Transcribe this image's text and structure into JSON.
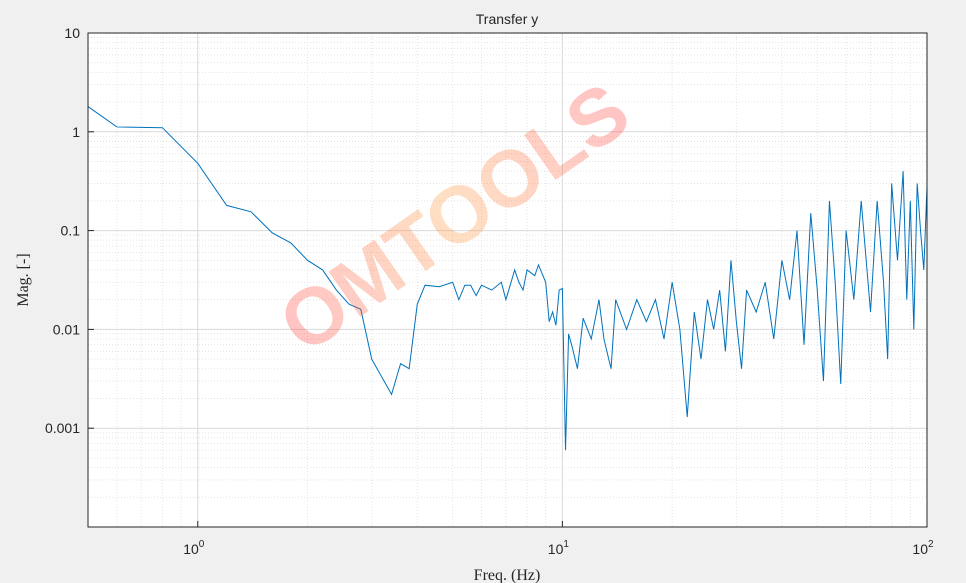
{
  "chart_data": {
    "type": "line",
    "title": "Transfer y",
    "xlabel": "Freq. (Hz)",
    "ylabel": "Mag. [-]",
    "watermark": "OMTOOLS",
    "xscale": "log",
    "yscale": "log",
    "grid": true,
    "minor_grid": true,
    "xlim": [
      0.5,
      100
    ],
    "ylim": [
      0.0001,
      10
    ],
    "xticks": [
      {
        "value": 1,
        "label": "10",
        "exp": "0"
      },
      {
        "value": 10,
        "label": "10",
        "exp": "1"
      },
      {
        "value": 100,
        "label": "10",
        "exp": "2"
      }
    ],
    "xminorticks": [
      0.6,
      0.7,
      0.8,
      0.9,
      2,
      3,
      4,
      5,
      6,
      7,
      8,
      9,
      20,
      30,
      40,
      50,
      60,
      70,
      80,
      90
    ],
    "yticks": [
      0.001,
      0.01,
      0.1,
      1,
      10
    ],
    "yminorticks": [
      0.0002,
      0.0003,
      0.0004,
      0.0005,
      0.0006,
      0.0007,
      0.0008,
      0.0009,
      0.002,
      0.003,
      0.004,
      0.005,
      0.006,
      0.007,
      0.008,
      0.009,
      0.02,
      0.03,
      0.04,
      0.05,
      0.06,
      0.07,
      0.08,
      0.09,
      0.2,
      0.3,
      0.4,
      0.5,
      0.6,
      0.7,
      0.8,
      0.9,
      2,
      3,
      4,
      5,
      6,
      7,
      8,
      9
    ],
    "x": [
      0.5,
      0.6,
      0.8,
      1.0,
      1.2,
      1.4,
      1.6,
      1.8,
      2.0,
      2.2,
      2.4,
      2.6,
      2.8,
      3.0,
      3.4,
      3.6,
      3.8,
      4.0,
      4.2,
      4.6,
      5.0,
      5.2,
      5.4,
      5.6,
      5.8,
      6.0,
      6.4,
      6.8,
      7.0,
      7.4,
      7.6,
      7.8,
      8.0,
      8.4,
      8.6,
      9.0,
      9.2,
      9.4,
      9.6,
      9.8,
      10.0,
      10.2,
      10.4,
      10.6,
      11,
      11.4,
      12,
      12.6,
      13,
      13.6,
      14,
      15,
      16,
      17,
      18,
      19,
      20,
      21,
      22,
      23,
      24,
      25,
      26,
      27,
      28,
      29,
      30,
      31,
      32,
      34,
      36,
      38,
      40,
      42,
      44,
      46,
      48,
      50,
      52,
      54,
      56,
      58,
      60,
      63,
      66,
      70,
      73,
      76,
      78,
      80,
      83,
      86,
      88,
      90,
      92,
      94,
      96,
      98,
      100
    ],
    "series": [
      {
        "name": "Transfer y",
        "color": "#0072bd",
        "values": [
          1.8,
          1.12,
          1.1,
          0.48,
          0.18,
          0.155,
          0.095,
          0.075,
          0.05,
          0.04,
          0.025,
          0.018,
          0.016,
          0.005,
          0.0022,
          0.0045,
          0.004,
          0.018,
          0.028,
          0.027,
          0.03,
          0.02,
          0.028,
          0.028,
          0.022,
          0.028,
          0.025,
          0.03,
          0.02,
          0.04,
          0.03,
          0.025,
          0.04,
          0.035,
          0.045,
          0.03,
          0.012,
          0.015,
          0.011,
          0.025,
          0.026,
          0.0006,
          0.009,
          0.007,
          0.004,
          0.013,
          0.008,
          0.02,
          0.008,
          0.004,
          0.02,
          0.01,
          0.02,
          0.012,
          0.02,
          0.008,
          0.03,
          0.01,
          0.0013,
          0.015,
          0.005,
          0.02,
          0.01,
          0.025,
          0.006,
          0.05,
          0.012,
          0.004,
          0.025,
          0.015,
          0.03,
          0.008,
          0.05,
          0.02,
          0.1,
          0.007,
          0.15,
          0.025,
          0.003,
          0.2,
          0.03,
          0.0028,
          0.1,
          0.02,
          0.2,
          0.015,
          0.2,
          0.03,
          0.005,
          0.3,
          0.05,
          0.4,
          0.02,
          0.2,
          0.01,
          0.3,
          0.1,
          0.04,
          0.28
        ]
      }
    ]
  }
}
